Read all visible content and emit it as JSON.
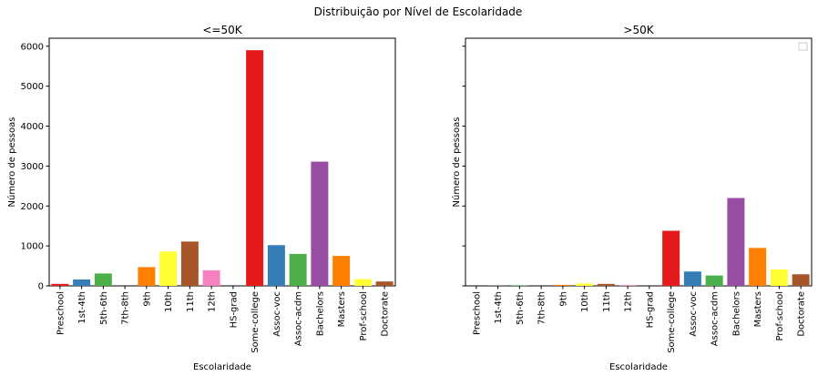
{
  "figure": {
    "suptitle": "Distribuição por Nível de Escolaridade"
  },
  "chart_data": [
    {
      "type": "bar",
      "title": "<=50K",
      "xlabel": "Escolaridade",
      "ylabel": "Número de pessoas",
      "ylim": [
        0,
        6200
      ],
      "yticks": [
        0,
        1000,
        2000,
        3000,
        4000,
        5000,
        6000
      ],
      "show_ytick_labels": true,
      "legend": "none",
      "categories": [
        "Preschool",
        "1st-4th",
        "5th-6th",
        "7th-8th",
        "9th",
        "10th",
        "11th",
        "12th",
        "HS-grad",
        "Some-college",
        "Assoc-voc",
        "Assoc-acdm",
        "Bachelors",
        "Masters",
        "Prof-school",
        "Doctorate"
      ],
      "values": [
        50,
        160,
        310,
        0,
        470,
        860,
        1110,
        390,
        0,
        5900,
        1020,
        800,
        3110,
        750,
        170,
        110
      ],
      "colors": [
        "#e41a1c",
        "#377eb8",
        "#4daf4a",
        "#984ea3",
        "#ff7f00",
        "#ffff33",
        "#a65628",
        "#f781bf",
        "#999999",
        "#e41a1c",
        "#377eb8",
        "#4daf4a",
        "#984ea3",
        "#ff7f00",
        "#ffff33",
        "#a65628"
      ]
    },
    {
      "type": "bar",
      "title": ">50K",
      "xlabel": "Escolaridade",
      "ylabel": "Número de pessoas",
      "ylim": [
        0,
        6200
      ],
      "yticks": [
        0,
        1000,
        2000,
        3000,
        4000,
        5000,
        6000
      ],
      "show_ytick_labels": false,
      "legend": "top-right (empty)",
      "categories": [
        "Preschool",
        "1st-4th",
        "5th-6th",
        "7th-8th",
        "9th",
        "10th",
        "11th",
        "12th",
        "HS-grad",
        "Some-college",
        "Assoc-voc",
        "Assoc-acdm",
        "Bachelors",
        "Masters",
        "Prof-school",
        "Doctorate"
      ],
      "values": [
        0,
        5,
        15,
        0,
        25,
        60,
        50,
        20,
        0,
        1380,
        360,
        260,
        2200,
        950,
        410,
        290
      ],
      "colors": [
        "#e41a1c",
        "#377eb8",
        "#4daf4a",
        "#984ea3",
        "#ff7f00",
        "#ffff33",
        "#a65628",
        "#f781bf",
        "#999999",
        "#e41a1c",
        "#377eb8",
        "#4daf4a",
        "#984ea3",
        "#ff7f00",
        "#ffff33",
        "#a65628"
      ]
    }
  ]
}
